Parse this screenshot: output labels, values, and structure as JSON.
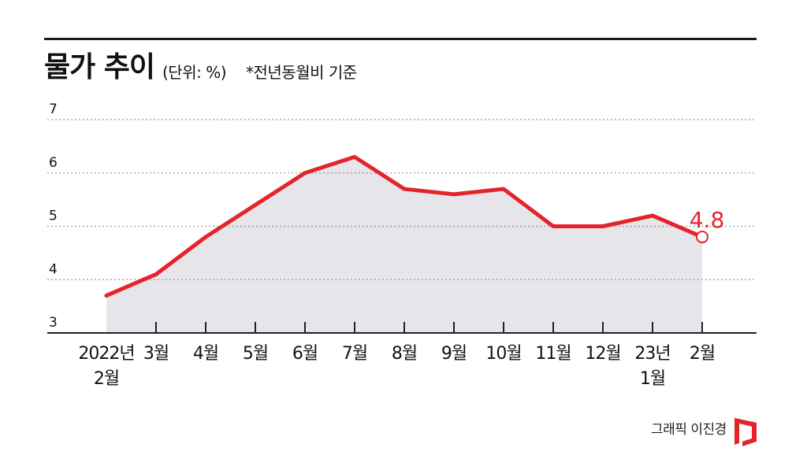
{
  "header": {
    "title": "물가 추이",
    "unit_note": "(단위: %)",
    "basis_note": "*전년동월비 기준"
  },
  "credit": {
    "text": "그래픽 이진경",
    "logo_icon": "red-bracket-logo-icon"
  },
  "colors": {
    "line": "#e3242b",
    "area": "#e6e6ea",
    "grid": "#9a9a9a",
    "axis": "#222222",
    "text": "#111111"
  },
  "chart_data": {
    "type": "area",
    "categories": [
      [
        "2022년",
        "2월"
      ],
      [
        "3월"
      ],
      [
        "4월"
      ],
      [
        "5월"
      ],
      [
        "6월"
      ],
      [
        "7월"
      ],
      [
        "8월"
      ],
      [
        "9월"
      ],
      [
        "10월"
      ],
      [
        "11월"
      ],
      [
        "12월"
      ],
      [
        "23년",
        "1월"
      ],
      [
        "2월"
      ]
    ],
    "series": [
      {
        "values": [
          3.7,
          4.1,
          4.8,
          5.4,
          6.0,
          6.3,
          5.7,
          5.6,
          5.7,
          5.0,
          5.0,
          5.2,
          4.8
        ]
      }
    ],
    "yticks": [
      "3",
      "4",
      "5",
      "6",
      "7"
    ],
    "ylim": [
      3,
      7
    ],
    "grid": true,
    "last_value_label": "4.8",
    "title": "물가 추이",
    "xlabel": "",
    "ylabel": ""
  }
}
